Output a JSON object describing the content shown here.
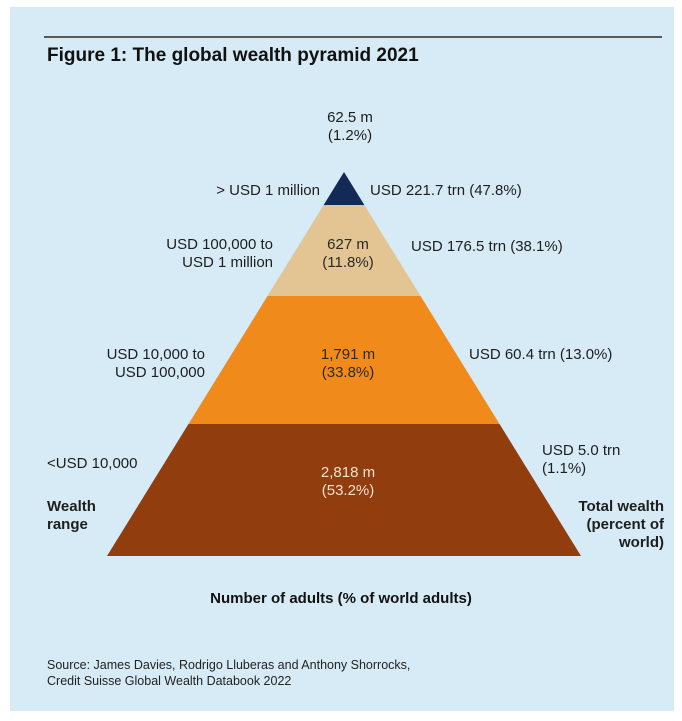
{
  "title": "Figure 1: The global wealth pyramid 2021",
  "chart_data": {
    "type": "pyramid",
    "title": "Figure 1: The global wealth pyramid 2021",
    "xlabel": "Number of adults (% of world adults)",
    "left_axis_label": "Wealth range",
    "right_axis_label": "Total wealth (percent of world)",
    "tiers": [
      {
        "wealth_range": "<USD 10,000",
        "adults_m": 2818,
        "adults_pct": 53.2,
        "adults_label": [
          "2,818 m",
          "(53.2%)"
        ],
        "total_wealth_trn": 5.0,
        "wealth_pct": 1.1,
        "wealth_label": [
          "USD 5.0 trn",
          "(1.1%)"
        ],
        "color": "#923d0e"
      },
      {
        "wealth_range": "USD 10,000 to USD 100,000",
        "adults_m": 1791,
        "adults_pct": 33.8,
        "adults_label": [
          "1,791 m",
          "(33.8%)"
        ],
        "total_wealth_trn": 60.4,
        "wealth_pct": 13.0,
        "wealth_label": [
          "USD 60.4 trn (13.0%)"
        ],
        "color": "#f08a1a"
      },
      {
        "wealth_range": "USD 100,000 to USD 1 million",
        "adults_m": 627,
        "adults_pct": 11.8,
        "adults_label": [
          "627 m",
          "(11.8%)"
        ],
        "total_wealth_trn": 176.5,
        "wealth_pct": 38.1,
        "wealth_label": [
          "USD 176.5 trn (38.1%)"
        ],
        "color": "#e2c592"
      },
      {
        "wealth_range": "> USD 1 million",
        "adults_m": 62.5,
        "adults_pct": 1.2,
        "adults_label": [
          "62.5 m",
          "(1.2%)"
        ],
        "total_wealth_trn": 221.7,
        "wealth_pct": 47.8,
        "wealth_label": [
          "USD 221.7 trn (47.8%)"
        ],
        "color": "#122a55"
      }
    ]
  },
  "labels": {
    "wealth_range_lines": [
      "Wealth",
      "range"
    ],
    "total_wealth_lines": [
      "Total wealth",
      "(percent of",
      "world)"
    ],
    "tier0_range_lines": [
      "<USD 10,000"
    ],
    "tier1_range_lines": [
      "USD 10,000 to",
      "USD 100,000"
    ],
    "tier2_range_lines": [
      "USD 100,000 to",
      "USD 1 million"
    ],
    "tier3_range_lines": [
      "> USD 1 million"
    ]
  },
  "source_lines": [
    "Source: James Davies, Rodrigo Lluberas and Anthony Shorrocks,",
    "Credit Suisse Global Wealth Databook 2022"
  ]
}
